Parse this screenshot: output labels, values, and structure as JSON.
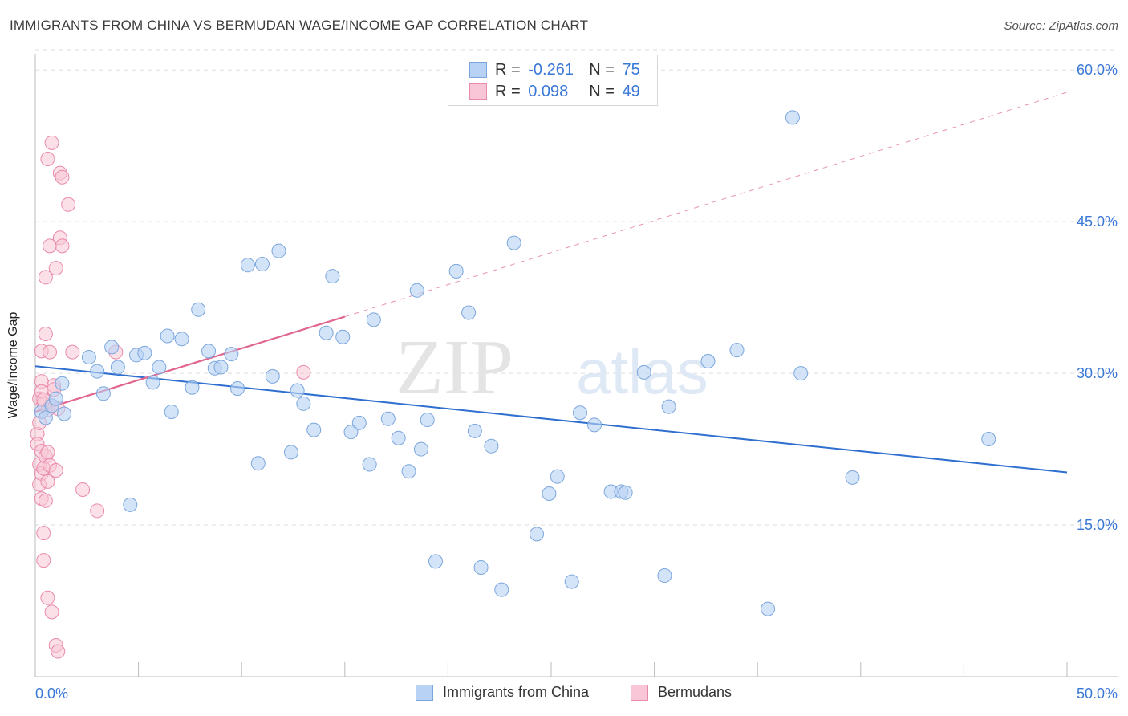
{
  "title": "IMMIGRANTS FROM CHINA VS BERMUDAN WAGE/INCOME GAP CORRELATION CHART",
  "source": "Source: ZipAtlas.com",
  "watermark": {
    "zip": "ZIP",
    "atlas": "atlas"
  },
  "legend": {
    "rows": [
      {
        "r_label": "R = ",
        "r_value": "-0.261",
        "n_label": "N = ",
        "n_value": "75"
      },
      {
        "r_label": "R = ",
        "r_value": "0.098",
        "n_label": "N = ",
        "n_value": "49"
      }
    ]
  },
  "colors": {
    "china_fill": "#b7d2f4",
    "china_stroke": "#7ba6dd",
    "china_line": "#2e6fcf",
    "bermuda_fill": "#f8c6d6",
    "bermuda_stroke": "#e98aab",
    "bermuda_line": "#e0668f",
    "axis_text": "#3a78d8",
    "grid": "#dddddd"
  },
  "chart_data": {
    "type": "scatter",
    "title": "IMMIGRANTS FROM CHINA VS BERMUDAN WAGE/INCOME GAP CORRELATION CHART",
    "xlabel": "",
    "ylabel": "Wage/Income Gap",
    "xlim": [
      0,
      50
    ],
    "ylim": [
      0,
      62
    ],
    "x_tick_labels": [
      "0.0%",
      "50.0%"
    ],
    "y_ticks": [
      15,
      30,
      45,
      60
    ],
    "y_tick_labels": [
      "15.0%",
      "30.0%",
      "45.0%",
      "60.0%"
    ],
    "series": [
      {
        "name": "Immigrants from China",
        "r": -0.261,
        "n": 75,
        "trend": {
          "x": [
            0,
            50
          ],
          "y": [
            30.7,
            20.2
          ]
        },
        "points": [
          [
            0.3,
            26.2
          ],
          [
            0.5,
            25.6
          ],
          [
            0.8,
            26.8
          ],
          [
            1.0,
            27.5
          ],
          [
            1.3,
            29.0
          ],
          [
            1.4,
            26.0
          ],
          [
            2.6,
            31.6
          ],
          [
            3.0,
            30.2
          ],
          [
            3.3,
            28.0
          ],
          [
            3.7,
            32.6
          ],
          [
            4.0,
            30.6
          ],
          [
            4.6,
            17.0
          ],
          [
            4.9,
            31.8
          ],
          [
            5.3,
            32.0
          ],
          [
            5.7,
            29.1
          ],
          [
            6.0,
            30.6
          ],
          [
            6.4,
            33.7
          ],
          [
            6.6,
            26.2
          ],
          [
            7.1,
            33.4
          ],
          [
            7.6,
            28.6
          ],
          [
            7.9,
            36.3
          ],
          [
            8.4,
            32.2
          ],
          [
            8.7,
            30.5
          ],
          [
            9.0,
            30.6
          ],
          [
            9.5,
            31.9
          ],
          [
            9.8,
            28.5
          ],
          [
            10.3,
            40.7
          ],
          [
            10.8,
            21.1
          ],
          [
            11.0,
            40.8
          ],
          [
            11.5,
            29.7
          ],
          [
            11.8,
            42.1
          ],
          [
            12.4,
            22.2
          ],
          [
            12.7,
            28.3
          ],
          [
            13.0,
            27.0
          ],
          [
            13.5,
            24.4
          ],
          [
            14.1,
            34.0
          ],
          [
            14.4,
            39.6
          ],
          [
            14.9,
            33.6
          ],
          [
            15.3,
            24.2
          ],
          [
            15.7,
            25.1
          ],
          [
            16.2,
            21.0
          ],
          [
            16.4,
            35.3
          ],
          [
            17.1,
            25.5
          ],
          [
            17.6,
            23.6
          ],
          [
            18.1,
            20.3
          ],
          [
            18.5,
            38.2
          ],
          [
            18.7,
            22.5
          ],
          [
            19.0,
            25.4
          ],
          [
            19.4,
            11.4
          ],
          [
            20.4,
            40.1
          ],
          [
            21.0,
            36.0
          ],
          [
            21.3,
            24.3
          ],
          [
            21.6,
            10.8
          ],
          [
            22.1,
            22.8
          ],
          [
            22.6,
            8.6
          ],
          [
            23.2,
            42.9
          ],
          [
            24.3,
            14.1
          ],
          [
            24.9,
            18.1
          ],
          [
            25.3,
            19.8
          ],
          [
            26.0,
            9.4
          ],
          [
            26.4,
            26.1
          ],
          [
            27.1,
            24.9
          ],
          [
            27.9,
            18.3
          ],
          [
            28.4,
            18.3
          ],
          [
            28.6,
            18.2
          ],
          [
            29.5,
            30.1
          ],
          [
            30.5,
            10.0
          ],
          [
            30.7,
            26.7
          ],
          [
            32.6,
            31.2
          ],
          [
            34.0,
            32.3
          ],
          [
            35.5,
            6.7
          ],
          [
            36.7,
            55.3
          ],
          [
            37.1,
            30.0
          ],
          [
            39.6,
            19.7
          ],
          [
            46.2,
            23.5
          ]
        ]
      },
      {
        "name": "Bermudans",
        "r": 0.098,
        "n": 49,
        "trend": {
          "x": [
            0,
            15
          ],
          "y": [
            26.2,
            35.6
          ],
          "dashed_extension": {
            "x": [
              15,
              50
            ],
            "y": [
              35.6,
              57.8
            ]
          }
        },
        "points": [
          [
            0.1,
            24.0
          ],
          [
            0.1,
            23.0
          ],
          [
            0.2,
            21.0
          ],
          [
            0.2,
            19.0
          ],
          [
            0.2,
            27.5
          ],
          [
            0.3,
            32.2
          ],
          [
            0.3,
            29.2
          ],
          [
            0.3,
            28.2
          ],
          [
            0.3,
            22.3
          ],
          [
            0.3,
            20.1
          ],
          [
            0.3,
            17.6
          ],
          [
            0.4,
            14.2
          ],
          [
            0.4,
            11.5
          ],
          [
            0.4,
            20.6
          ],
          [
            0.4,
            27.0
          ],
          [
            0.5,
            21.8
          ],
          [
            0.5,
            17.4
          ],
          [
            0.5,
            33.9
          ],
          [
            0.5,
            39.5
          ],
          [
            0.6,
            51.2
          ],
          [
            0.6,
            26.4
          ],
          [
            0.6,
            19.3
          ],
          [
            0.6,
            7.8
          ],
          [
            0.7,
            42.6
          ],
          [
            0.7,
            32.1
          ],
          [
            0.7,
            20.9
          ],
          [
            0.8,
            52.8
          ],
          [
            0.8,
            6.4
          ],
          [
            0.8,
            26.8
          ],
          [
            0.9,
            28.8
          ],
          [
            0.9,
            28.4
          ],
          [
            1.0,
            3.1
          ],
          [
            1.0,
            40.4
          ],
          [
            1.0,
            20.4
          ],
          [
            1.1,
            2.5
          ],
          [
            1.1,
            26.5
          ],
          [
            1.2,
            49.8
          ],
          [
            1.2,
            43.4
          ],
          [
            1.3,
            42.6
          ],
          [
            1.3,
            49.4
          ],
          [
            1.6,
            46.7
          ],
          [
            1.8,
            32.1
          ],
          [
            2.3,
            18.5
          ],
          [
            3.0,
            16.4
          ],
          [
            3.9,
            32.1
          ],
          [
            13.0,
            30.1
          ],
          [
            0.4,
            27.4
          ],
          [
            0.2,
            25.1
          ],
          [
            0.6,
            22.2
          ]
        ]
      }
    ]
  },
  "bottom_legend": {
    "china_label": "Immigrants from China",
    "bermuda_label": "Bermudans"
  }
}
